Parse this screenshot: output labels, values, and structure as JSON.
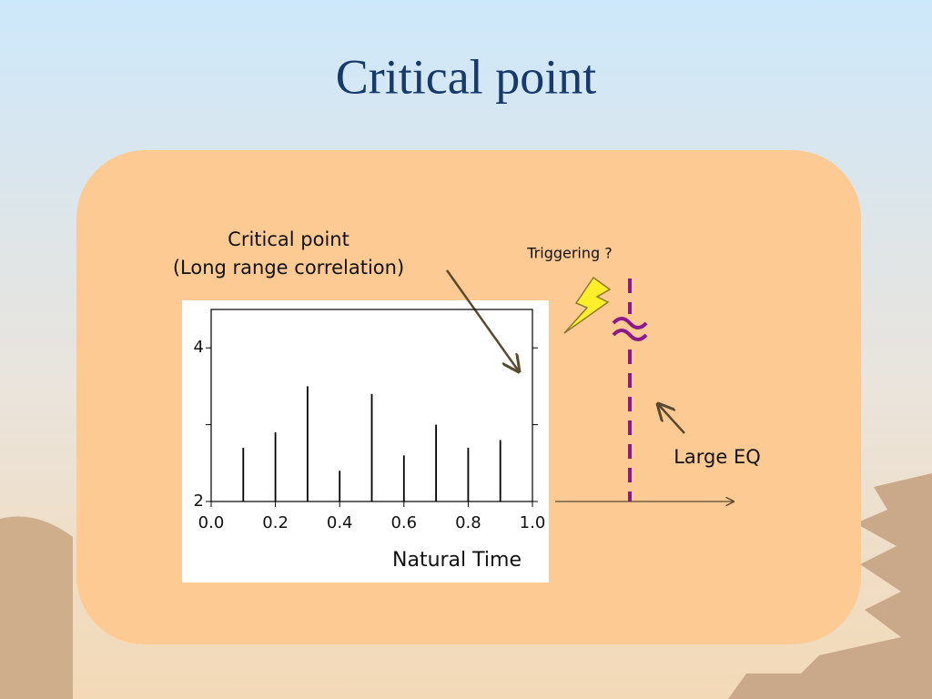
{
  "slide": {
    "title": "Critical point"
  },
  "annotations": {
    "critical_point": "Critical point",
    "correlation": "(Long range correlation)",
    "triggering": "Triggering ?",
    "large_eq": "Large EQ"
  },
  "chart_data": {
    "type": "stem",
    "x": [
      0.1,
      0.2,
      0.3,
      0.4,
      0.5,
      0.6,
      0.7,
      0.8,
      0.9
    ],
    "values": [
      2.7,
      2.9,
      3.5,
      2.4,
      3.4,
      2.6,
      3.0,
      2.7,
      2.8
    ],
    "color": "#000000",
    "xlabel": "Natural Time",
    "xlim": [
      0,
      1
    ],
    "xticks": [
      {
        "value": 0,
        "label": "0.0"
      },
      {
        "value": 0.2,
        "label": "0.2"
      },
      {
        "value": 0.4,
        "label": "0.4"
      },
      {
        "value": 0.6,
        "label": "0.6"
      },
      {
        "value": 0.8,
        "label": "0.8"
      },
      {
        "value": 1,
        "label": "1.0"
      }
    ],
    "ylim": [
      2,
      4.5
    ],
    "yticks": [
      2,
      4
    ],
    "yminorticks": [
      3
    ]
  }
}
